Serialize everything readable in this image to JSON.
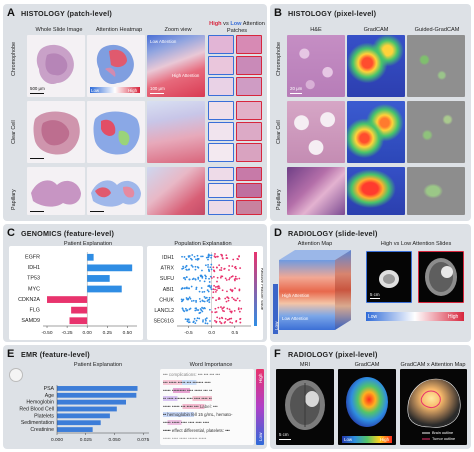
{
  "panels": {
    "A": {
      "letter": "A",
      "title": "HISTOLOGY (patch-level)",
      "col_wsi": "Whole Slide Image",
      "col_heatmap": "Attention Heatmap",
      "col_zoom": "Zoom view",
      "col_patches_high": "High",
      "col_patches_vs": " vs ",
      "col_patches_low": "Low",
      "col_patches_rest": " Attention",
      "col_patches_line2": "Patches",
      "row_labels": [
        "Chromophobe",
        "Clear Cell",
        "Papillary"
      ],
      "scale_label": "500 μm",
      "zoom_scale": "100 μm",
      "low_attention": "Low Attention",
      "high_attention": "High Attention",
      "legend_low": "Low",
      "legend_high": "High"
    },
    "B": {
      "letter": "B",
      "title": "HISTOLOGY (pixel-level)",
      "col_he": "H&E",
      "col_gradcam": "GradCAM",
      "col_guided": "Guided-GradCAM",
      "row_labels": [
        "Chromophobe",
        "Clear Cell",
        "Papillary"
      ],
      "scale_label": "20 μm"
    },
    "C": {
      "letter": "C",
      "title": "GENOMICS (feature-level)",
      "left_title": "Patient Explanation",
      "right_title": "Population Explanation",
      "right_axis_label": "Relative Feature Value"
    },
    "D": {
      "letter": "D",
      "title": "RADIOLOGY (slide-level)",
      "left_title": "Attention Map",
      "right_title": "High vs Low Attention Slides",
      "high_attention": "High Attention",
      "low_attention": "Low Attention",
      "scale_label": "5 cm",
      "legend_low": "Low",
      "legend_high": "High",
      "side_low": "Low",
      "side_high": "High"
    },
    "E": {
      "letter": "E",
      "title": "EMR (feature-level)",
      "left_title": "Patient Explanation",
      "right_title": "Word Importance",
      "side_low": "Low",
      "side_high": "High",
      "text_lines": [
        "••• complications: ••• ••• ••• •••",
        "••• ••••• ••••• ••• ••••••• ••••",
        "••••• ••••••••• •••• ••••• ••• ••",
        "•• •••• ••••••• •••• •••• •••• ••",
        "••••• ••••• ••• •••• ••• Label: •••",
        "•• hemoglobin fell 15 g/mL, hemato-",
        "••••• ••••• •••• •••• •••• ••••",
        "••••• effect differential, platelets: •••",
        "••••• •••• ••••• •••••• •••••"
      ]
    },
    "F": {
      "letter": "F",
      "title": "RADIOLOGY (pixel-level)",
      "col_mri": "MRI",
      "col_gradcam": "GradCAM",
      "col_gradcam_attn": "GradCAM x Attention Map",
      "scale_label": "5 cm",
      "legend_low": "Low",
      "legend_high": "High",
      "brain_outline": "Brain outline",
      "tumor_outline": "Tumor outline"
    }
  },
  "chart_data": [
    {
      "id": "C-patient",
      "type": "bar",
      "orientation": "horizontal",
      "categories": [
        "EGFR",
        "IDH1",
        "TP53",
        "MYC",
        "CDKN2A",
        "FLG",
        "SAMD9"
      ],
      "values": [
        0.08,
        0.56,
        0.28,
        0.43,
        -0.5,
        -0.2,
        -0.22
      ],
      "xlim": [
        -0.55,
        0.62
      ],
      "xticks": [
        "-0.50",
        "-0.25",
        "0.00",
        "0.25",
        "0.50"
      ],
      "colors": {
        "positive": "#2f8de4",
        "negative": "#e8336d"
      }
    },
    {
      "id": "C-population",
      "type": "scatter",
      "subtype": "beeswarm",
      "categories": [
        "IDH1",
        "ATRX",
        "SUFU",
        "ABI1",
        "CHUK",
        "LANCL2",
        "SEC61G"
      ],
      "xlim": [
        -0.75,
        0.85
      ],
      "xticks": [
        "-0.5",
        "0.0",
        "0.5"
      ],
      "colors": {
        "low": "#2f8de4",
        "high": "#e8336d"
      }
    },
    {
      "id": "E-patient",
      "type": "bar",
      "orientation": "horizontal",
      "categories": [
        "PSA",
        "Age",
        "Hemoglobin",
        "Red Blood Cell",
        "Platelets",
        "Sedimentation",
        "Creatinine"
      ],
      "values": [
        0.07,
        0.069,
        0.06,
        0.052,
        0.046,
        0.038,
        0.031
      ],
      "xlim": [
        0,
        0.08
      ],
      "xticks": [
        "0.000",
        "0.025",
        "0.050",
        "0.075"
      ],
      "colors": {
        "bar": "#3d7dd8"
      }
    }
  ]
}
